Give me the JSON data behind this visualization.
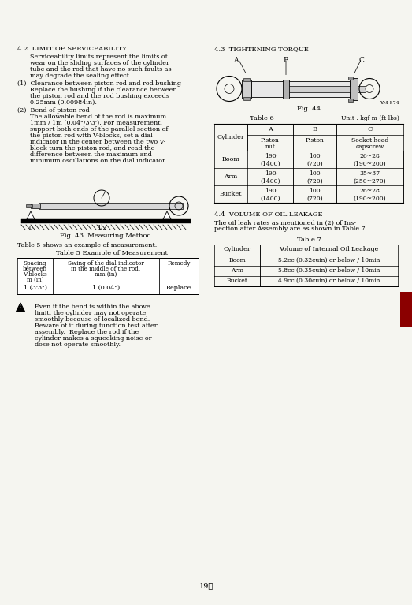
{
  "bg_color": "#f5f5f0",
  "page_bg": "#f5f5f0",
  "page_number": "19①",
  "left_col": {
    "section_42_title": "4.2  LIMIT OF SERVICEABILITY",
    "section_42_para1": "Serviceability limits represent the limits of\nwear on the sliding surfaces of the cylinder\ntube and the rod that have no such faults as\nmay degrade the sealing effect.",
    "section_42_item1_title": "(1)  Clearance between piston rod and rod bushing",
    "section_42_item1_text": "Replace the bushing if the clearance between\nthe piston rod and the rod bushing exceeds\n0.25mm (0.00984in).",
    "section_42_item2_title": "(2)  Bend of piston rod",
    "section_42_item2_text": "The allowable bend of the rod is maximum\n1mm / 1m (0.04\"/3'3'). For measurement,\nsupport both ends of the parallel section of\nthe piston rod with V-blocks, set a dial\nindicator in the center between the two V-\nblock turn the piston rod, and read the\ndifference between the maximum and\nminimum oscillations on the dial indicator.",
    "fig43_caption": "Fig. 43  Measuring Method",
    "table5_intro": "Table 5 shows an example of measurement.",
    "table5_title": "Table 5 Example of Measurement",
    "table5_headers": [
      "Spacing\nbetween\nV-blocks\nm (in)",
      "Swing of the dial indicator\nin the middle of the rod.\nmm (in)",
      "Remedy"
    ],
    "table5_row": [
      "1 (3'3\")",
      "1 (0.04\")",
      "Replace"
    ],
    "warning_text": "Even if the bend is within the above\nlimit, the cylinder may not operate\nsmoothly because of localized bend.\nBeware of it during function test after\nassembly.  Replace the rod if the\ncylinder makes a squeeking noise or\ndose not operate smoothly."
  },
  "right_col": {
    "section_43_title": "4.3  TIGHTENING TORQUE",
    "fig44_caption": "Fig. 44",
    "fig44_label": "YM-874",
    "table6_title": "Table 6",
    "table6_unit": "Unit : kgf·m (ft-lbs)",
    "table6_rows": [
      [
        "Boom",
        "190\n(1400)",
        "100\n(720)",
        "26~28\n(190~200)"
      ],
      [
        "Arm",
        "190\n(1400)",
        "100\n(720)",
        "35~37\n(250~270)"
      ],
      [
        "Bucket",
        "190\n(1400)",
        "100\n(720)",
        "26~28\n(190~200)"
      ]
    ],
    "section_44_title": "4.4  VOLUME OF OIL LEAKAGE",
    "section_44_text": "The oil leak rates as mentioned in (2) of Ins-\npection after Assembly are as shown in Table 7.",
    "table7_title": "Table 7",
    "table7_headers": [
      "Cylinder",
      "Volume of Internal Oil Leakage"
    ],
    "table7_rows": [
      [
        "Boom",
        "5.2cc (0.32cuin) or below / 10min"
      ],
      [
        "Arm",
        "5.8cc (0.35cuin) or below / 10min"
      ],
      [
        "Bucket",
        "4.9cc (0.30cuin) or below / 10min"
      ]
    ],
    "red_block_color": "#8B0000"
  }
}
